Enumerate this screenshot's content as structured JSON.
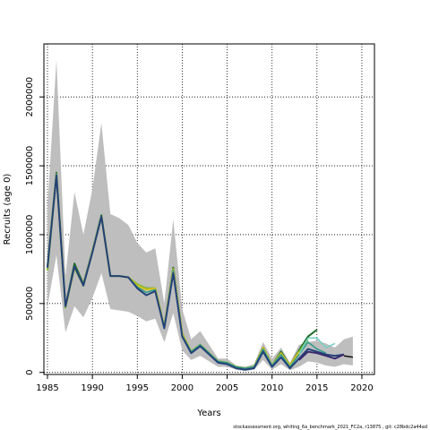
{
  "chart_data": {
    "type": "line",
    "xlabel": "Years",
    "ylabel": "Recruits (age 0)",
    "xlim": [
      1984.6,
      2021.4
    ],
    "ylim": [
      -15000,
      2385000
    ],
    "x_ticks": [
      1985,
      1990,
      1995,
      2000,
      2005,
      2010,
      2015,
      2020
    ],
    "y_ticks": [
      0,
      500000,
      1000000,
      1500000,
      2000000
    ],
    "x_tick_labels": [
      "1985",
      "1990",
      "1995",
      "2000",
      "2005",
      "2010",
      "2015",
      "2020"
    ],
    "y_tick_labels": [
      "0",
      "500000",
      "1000000",
      "1500000",
      "2000000"
    ],
    "grid": true,
    "grid_style": "dotted",
    "interval": {
      "color": "#bebebe",
      "x": [
        1985,
        1986,
        1987,
        1988,
        1989,
        1990,
        1991,
        1992,
        1993,
        1994,
        1995,
        1996,
        1997,
        1998,
        1999,
        2000,
        2001,
        2002,
        2003,
        2004,
        2005,
        2006,
        2007,
        2008,
        2009,
        2010,
        2011,
        2012,
        2013,
        2014,
        2015,
        2016,
        2017,
        2018,
        2019
      ],
      "upper": [
        1200000,
        2270000,
        700000,
        1310000,
        1000000,
        1330000,
        1810000,
        1150000,
        1120000,
        1070000,
        940000,
        870000,
        900000,
        500000,
        1110000,
        460000,
        240000,
        300000,
        200000,
        100000,
        100000,
        50000,
        40000,
        60000,
        220000,
        100000,
        180000,
        70000,
        200000,
        220000,
        230000,
        210000,
        180000,
        240000,
        260000
      ],
      "lower": [
        480000,
        850000,
        290000,
        480000,
        400000,
        540000,
        720000,
        460000,
        450000,
        440000,
        410000,
        370000,
        390000,
        220000,
        430000,
        160000,
        90000,
        120000,
        80000,
        40000,
        40000,
        20000,
        10000,
        20000,
        90000,
        20000,
        60000,
        15000,
        40000,
        80000,
        70000,
        50000,
        40000,
        60000,
        50000
      ]
    },
    "series": [
      {
        "color": "#1a6b2a",
        "width": 2,
        "x": [
          1985,
          1986,
          1987,
          1988,
          1989,
          1990,
          1991,
          1992,
          1993,
          1994,
          1995,
          1996,
          1997,
          1998,
          1999,
          2000,
          2001,
          2002,
          2003,
          2004,
          2005,
          2006,
          2007,
          2008,
          2009,
          2010,
          2011,
          2012,
          2013,
          2014,
          2015
        ],
        "y": [
          770000,
          1450000,
          480000,
          790000,
          640000,
          880000,
          1140000,
          700000,
          700000,
          690000,
          630000,
          610000,
          610000,
          330000,
          760000,
          280000,
          150000,
          200000,
          140000,
          80000,
          70000,
          40000,
          30000,
          40000,
          180000,
          50000,
          150000,
          50000,
          160000,
          260000,
          310000
        ]
      },
      {
        "color": "#7fb92a",
        "width": 2,
        "x": [
          1985,
          1986,
          1987,
          1988,
          1989,
          1990,
          1991,
          1992,
          1993,
          1994,
          1995,
          1996,
          1997,
          1998,
          1999,
          2000,
          2001,
          2002,
          2003,
          2004,
          2005,
          2006,
          2007,
          2008,
          2009,
          2010,
          2011,
          2012,
          2013,
          2014
        ],
        "y": [
          740000,
          1430000,
          470000,
          760000,
          630000,
          870000,
          1130000,
          700000,
          700000,
          690000,
          640000,
          610000,
          610000,
          330000,
          740000,
          280000,
          150000,
          200000,
          140000,
          80000,
          70000,
          40000,
          30000,
          40000,
          170000,
          50000,
          140000,
          50000,
          150000,
          240000
        ]
      },
      {
        "color": "#d4c21e",
        "width": 2,
        "x": [
          1985,
          1986,
          1987,
          1988,
          1989,
          1990,
          1991,
          1992,
          1993,
          1994,
          1995,
          1996,
          1997,
          1998,
          1999,
          2000,
          2001,
          2002,
          2003,
          2004,
          2005,
          2006,
          2007,
          2008,
          2009,
          2010,
          2011,
          2012,
          2013
        ],
        "y": [
          760000,
          1440000,
          480000,
          770000,
          630000,
          880000,
          1130000,
          700000,
          700000,
          690000,
          630000,
          600000,
          610000,
          330000,
          750000,
          280000,
          150000,
          200000,
          140000,
          80000,
          70000,
          40000,
          30000,
          40000,
          180000,
          50000,
          140000,
          50000,
          150000
        ]
      },
      {
        "color": "#2e9a8a",
        "width": 1.5,
        "x": [
          1985,
          1986,
          1987,
          1988,
          1989,
          1990,
          1991,
          1992,
          1993,
          1994,
          1995,
          1996,
          1997,
          1998,
          1999,
          2000,
          2001,
          2002,
          2003,
          2004,
          2005,
          2006,
          2007,
          2008,
          2009,
          2010,
          2011,
          2012,
          2013,
          2014,
          2015,
          2016
        ],
        "y": [
          760000,
          1440000,
          480000,
          770000,
          630000,
          880000,
          1130000,
          700000,
          700000,
          690000,
          620000,
          580000,
          600000,
          330000,
          740000,
          270000,
          150000,
          200000,
          140000,
          80000,
          70000,
          40000,
          30000,
          40000,
          170000,
          50000,
          130000,
          40000,
          130000,
          220000,
          170000,
          140000
        ]
      },
      {
        "color": "#6fd1c6",
        "width": 1.5,
        "x": [
          2013,
          2014,
          2015,
          2016,
          2017
        ],
        "y": [
          130000,
          250000,
          250000,
          180000,
          210000
        ]
      },
      {
        "color": "#23427a",
        "width": 2,
        "x": [
          1985,
          1986,
          1987,
          1988,
          1989,
          1990,
          1991,
          1992,
          1993,
          1994,
          1995,
          1996,
          1997,
          1998,
          1999,
          2000,
          2001,
          2002,
          2003,
          2004,
          2005,
          2006,
          2007,
          2008,
          2009,
          2010,
          2011,
          2012,
          2013,
          2014,
          2015,
          2016,
          2017,
          2018
        ],
        "y": [
          760000,
          1430000,
          480000,
          770000,
          630000,
          870000,
          1130000,
          700000,
          700000,
          690000,
          610000,
          560000,
          590000,
          320000,
          720000,
          260000,
          140000,
          190000,
          130000,
          70000,
          60000,
          30000,
          20000,
          30000,
          150000,
          40000,
          110000,
          30000,
          100000,
          170000,
          150000,
          130000,
          120000,
          130000
        ]
      },
      {
        "color": "#3b2a6e",
        "width": 2,
        "x": [
          2013,
          2014,
          2015,
          2016,
          2017,
          2018
        ],
        "y": [
          90000,
          150000,
          140000,
          120000,
          100000,
          130000
        ]
      },
      {
        "color": "#111111",
        "width": 1.5,
        "x": [
          2018,
          2019
        ],
        "y": [
          120000,
          110000
        ]
      }
    ]
  },
  "footer": {
    "source_text": "stockassessment.org,  whiting_6a_benchmark_2021_FC2a,  r13875 ,  git:  c28bdc2a44ad"
  }
}
